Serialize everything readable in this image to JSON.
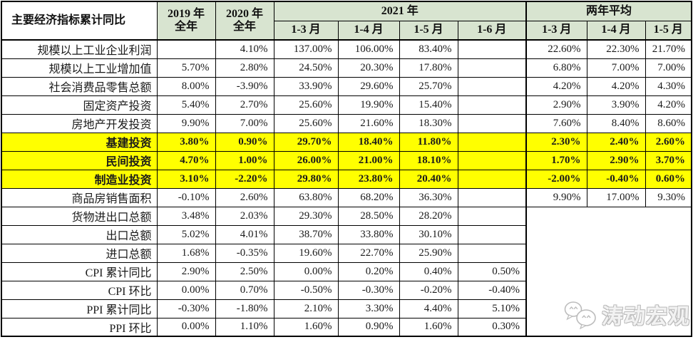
{
  "chart_data": {
    "type": "table",
    "title": "主要经济指标累计同比",
    "header": {
      "corner": "主要经济指标累计同比",
      "year_columns": [
        {
          "line1": "2019 年",
          "line2": "全年"
        },
        {
          "line1": "2020 年",
          "line2": "全年"
        }
      ],
      "group_2021": {
        "label": "2021 年",
        "months": [
          "1-3 月",
          "1-4 月",
          "1-5 月",
          "1-6 月"
        ]
      },
      "group_two_year_avg": {
        "label": "两年平均",
        "months": [
          "1-3 月",
          "1-4 月",
          "1-5 月"
        ]
      }
    },
    "rows": [
      {
        "label": "规模以上工业企业利润",
        "highlight": false,
        "values": [
          "",
          "4.10%",
          "137.00%",
          "106.00%",
          "83.40%",
          "",
          "22.60%",
          "22.30%",
          "21.70%"
        ]
      },
      {
        "label": "规模以上工业增加值",
        "highlight": false,
        "values": [
          "5.70%",
          "2.80%",
          "24.50%",
          "20.30%",
          "17.80%",
          "",
          "6.80%",
          "7.00%",
          "7.00%"
        ]
      },
      {
        "label": "社会消费品零售总额",
        "highlight": false,
        "values": [
          "8.00%",
          "-3.90%",
          "33.90%",
          "29.60%",
          "25.70%",
          "",
          "4.20%",
          "4.20%",
          "4.30%"
        ]
      },
      {
        "label": "固定资产投资",
        "highlight": false,
        "values": [
          "5.40%",
          "2.70%",
          "25.60%",
          "19.90%",
          "15.40%",
          "",
          "2.90%",
          "3.90%",
          "4.20%"
        ]
      },
      {
        "label": "房地产开发投资",
        "highlight": false,
        "values": [
          "9.90%",
          "7.00%",
          "25.60%",
          "21.60%",
          "18.30%",
          "",
          "7.60%",
          "8.40%",
          "8.60%"
        ]
      },
      {
        "label": "基建投资",
        "highlight": true,
        "values": [
          "3.80%",
          "0.90%",
          "29.70%",
          "18.40%",
          "11.80%",
          "",
          "2.30%",
          "2.40%",
          "2.60%"
        ]
      },
      {
        "label": "民间投资",
        "highlight": true,
        "values": [
          "4.70%",
          "1.00%",
          "26.00%",
          "21.00%",
          "18.10%",
          "",
          "1.70%",
          "2.90%",
          "3.70%"
        ]
      },
      {
        "label": "制造业投资",
        "highlight": true,
        "values": [
          "3.10%",
          "-2.20%",
          "29.80%",
          "23.80%",
          "20.40%",
          "",
          "-2.00%",
          "-0.40%",
          "0.60%"
        ]
      },
      {
        "label": "商品房销售面积",
        "highlight": false,
        "values": [
          "-0.10%",
          "2.60%",
          "63.80%",
          "68.20%",
          "36.30%",
          "",
          "9.90%",
          "17.00%",
          "9.30%"
        ]
      },
      {
        "label": "货物进出口总额",
        "highlight": false,
        "values": [
          "3.48%",
          "2.03%",
          "29.30%",
          "28.50%",
          "28.20%",
          ""
        ]
      },
      {
        "label": "出口总额",
        "highlight": false,
        "values": [
          "5.02%",
          "4.01%",
          "38.70%",
          "33.80%",
          "30.10%",
          ""
        ]
      },
      {
        "label": "进口总额",
        "highlight": false,
        "values": [
          "1.68%",
          "-0.35%",
          "19.60%",
          "22.70%",
          "25.90%",
          ""
        ]
      },
      {
        "label": "CPI 累计同比",
        "highlight": false,
        "values": [
          "2.90%",
          "2.50%",
          "0.00%",
          "0.20%",
          "0.40%",
          "0.50%"
        ]
      },
      {
        "label": "CPI 环比",
        "highlight": false,
        "values": [
          "0.00%",
          "0.70%",
          "-0.50%",
          "-0.30%",
          "-0.20%",
          "-0.40%"
        ]
      },
      {
        "label": "PPI 累计同比",
        "highlight": false,
        "values": [
          "-0.30%",
          "-1.80%",
          "2.10%",
          "3.30%",
          "4.40%",
          "5.10%"
        ]
      },
      {
        "label": "PPI 环比",
        "highlight": false,
        "values": [
          "0.00%",
          "1.10%",
          "1.60%",
          "0.90%",
          "1.60%",
          "0.30%"
        ]
      }
    ],
    "merged_empty_region": {
      "from_row": 9,
      "colspan": 3
    }
  },
  "watermark": {
    "icon": "wechat-icon",
    "text": "涛动宏观"
  },
  "colors": {
    "header_green": "#d8e4d0",
    "highlight_yellow": "#ffff00",
    "border": "#000000",
    "watermark_gray": "#bcbcbc"
  }
}
